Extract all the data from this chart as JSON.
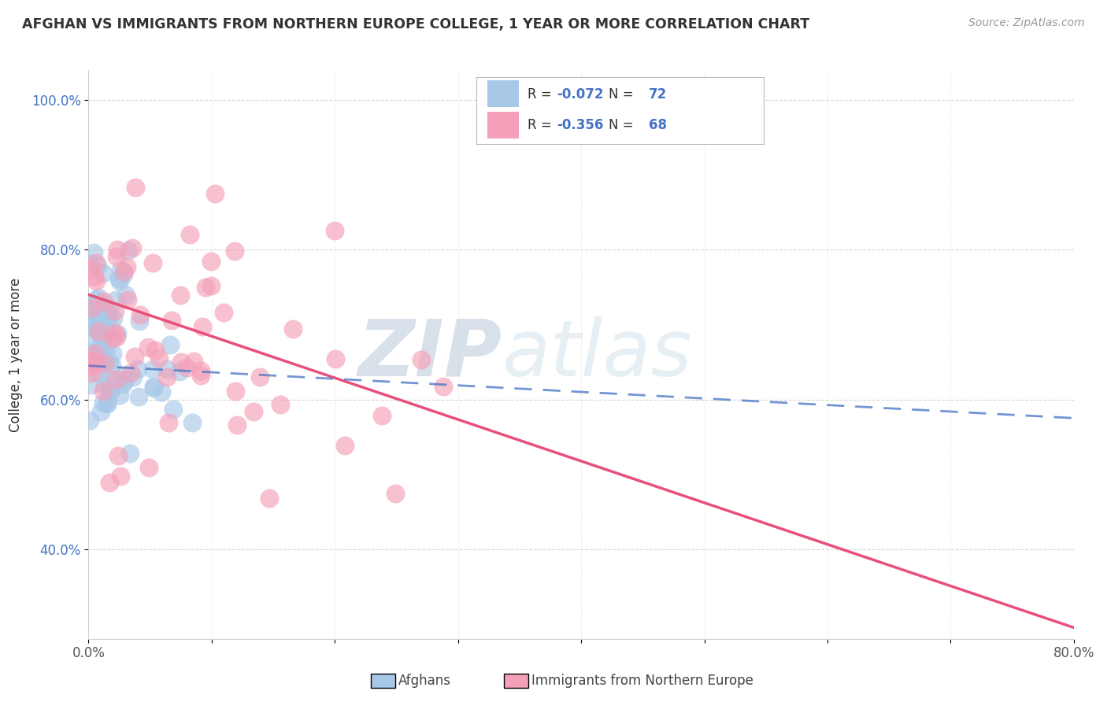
{
  "title": "AFGHAN VS IMMIGRANTS FROM NORTHERN EUROPE COLLEGE, 1 YEAR OR MORE CORRELATION CHART",
  "source": "Source: ZipAtlas.com",
  "ylabel": "College, 1 year or more",
  "xlim": [
    0.0,
    0.8
  ],
  "ylim": [
    0.28,
    1.04
  ],
  "yticks": [
    0.4,
    0.6,
    0.8,
    1.0
  ],
  "color_blue": "#a8c8e8",
  "color_pink": "#f4a0b8",
  "line_blue": "#4472c4",
  "line_pink": "#e8507a",
  "line_blue_dashed": "#8ab0d8",
  "watermark_zip": "ZIP",
  "watermark_atlas": "atlas",
  "watermark_color_zip": "#c0ccd8",
  "watermark_color_atlas": "#c8d8e8",
  "background_color": "#ffffff",
  "grid_color": "#cccccc",
  "legend_label1": "Afghans",
  "legend_label2": "Immigrants from Northern Europe",
  "R1": -0.072,
  "N1": 72,
  "R2": -0.356,
  "N2": 68,
  "ne_line_x0": 0.0,
  "ne_line_y0": 0.74,
  "ne_line_x1": 0.8,
  "ne_line_y1": 0.295,
  "af_line_x0": 0.0,
  "af_line_y0": 0.645,
  "af_line_x1": 0.8,
  "af_line_y1": 0.575
}
